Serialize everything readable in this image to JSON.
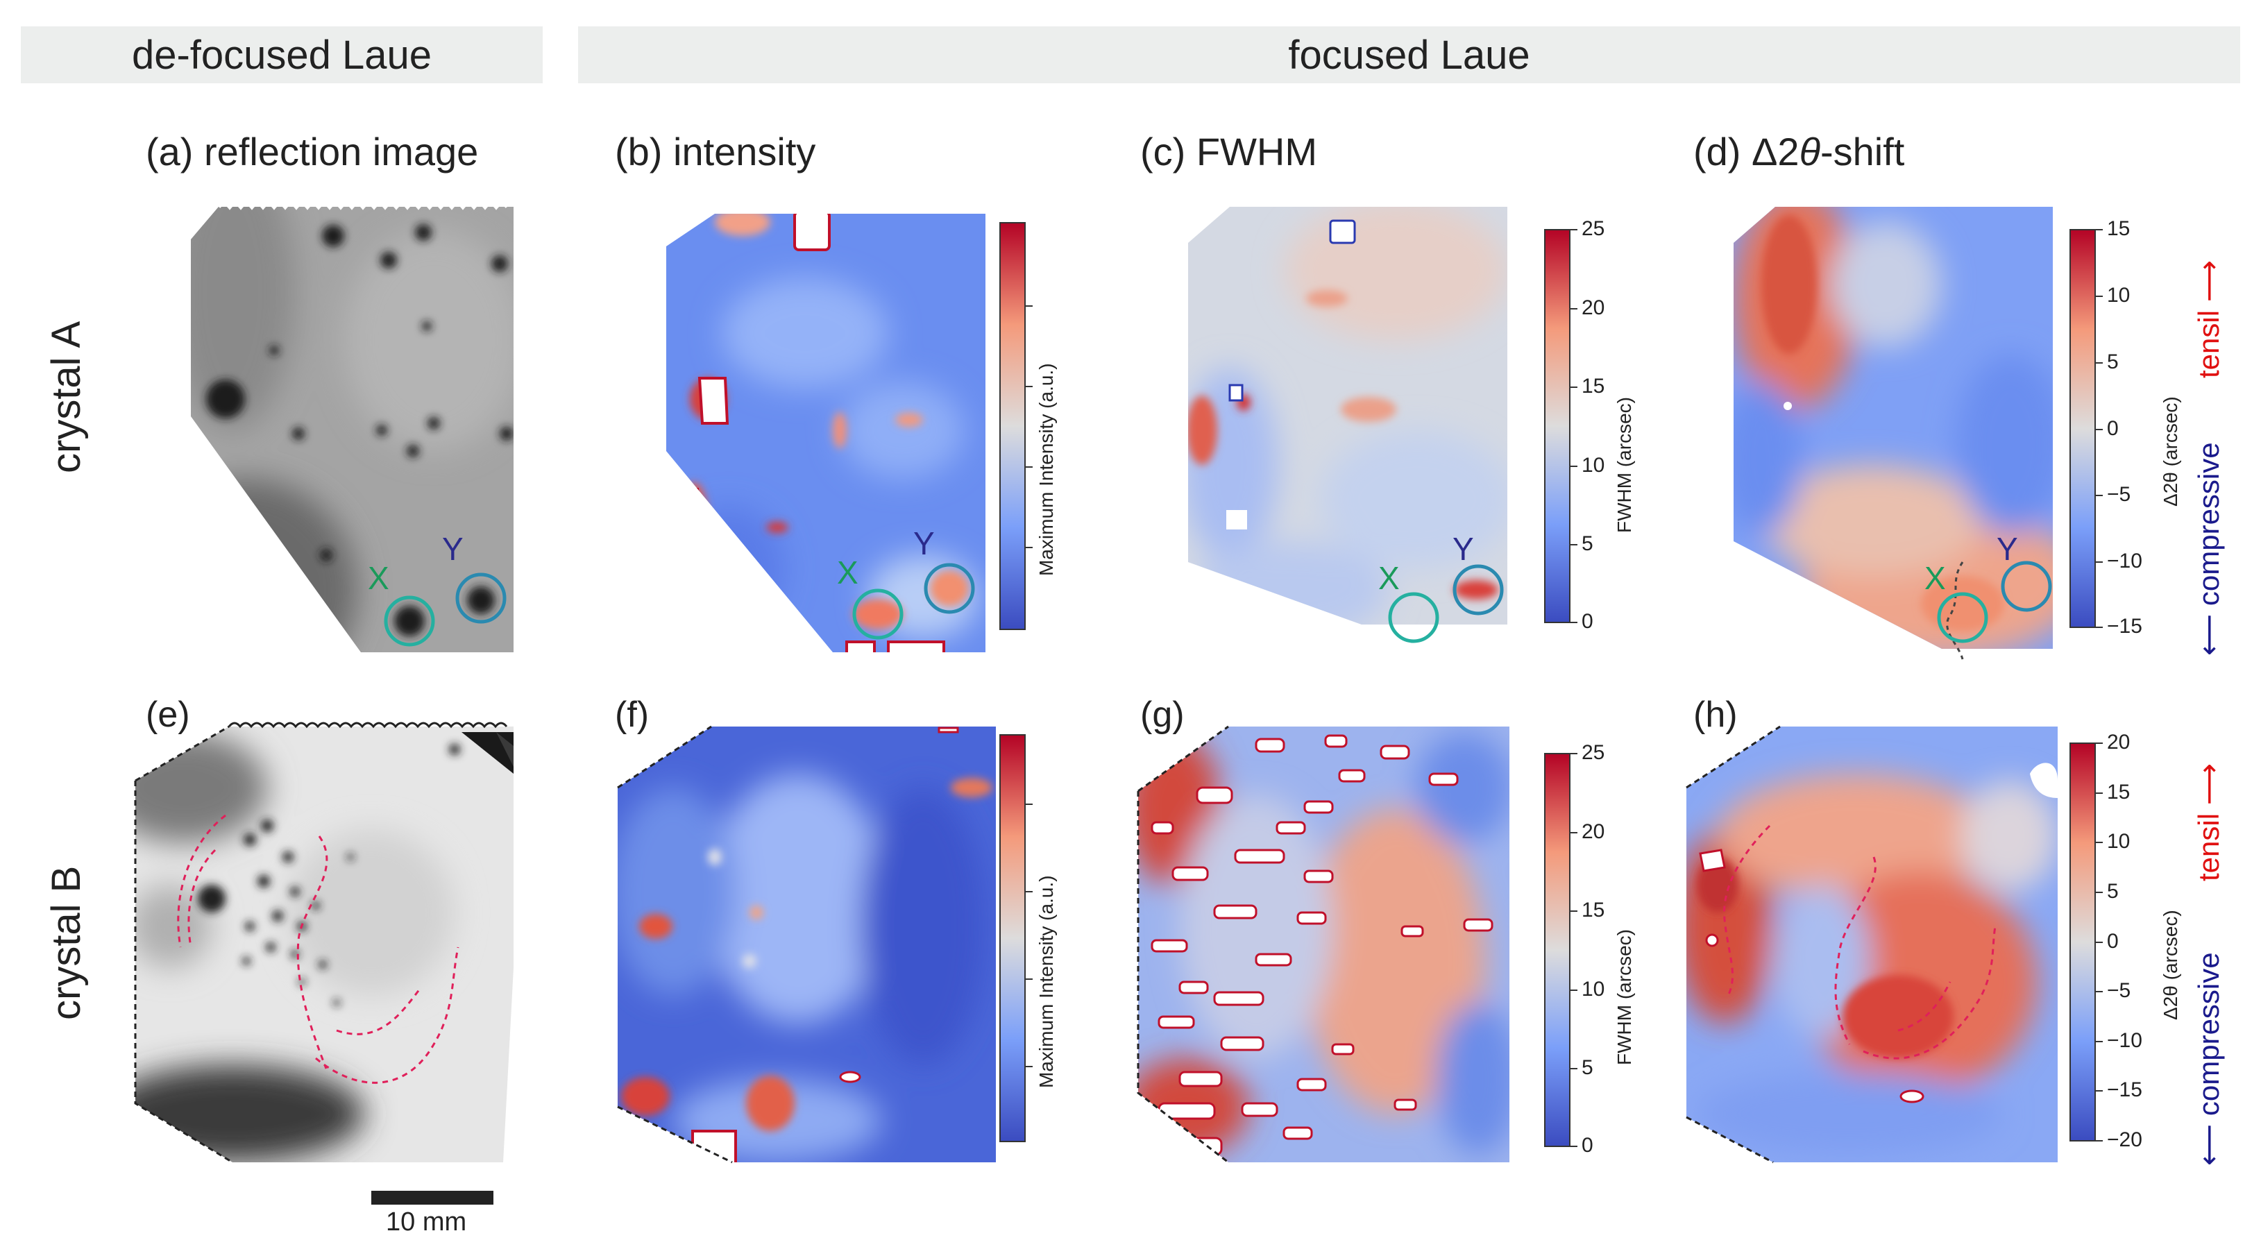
{
  "headers": {
    "defocused": "de-focused Laue",
    "focused": "focused Laue"
  },
  "panel_titles": {
    "a": "(a) reflection image",
    "b": "(b) intensity",
    "c": "(c) FWHM",
    "d_prefix": "(d) ",
    "d_delta": "Δ2",
    "d_theta": "θ",
    "d_suffix": "-shift"
  },
  "panel_labels": {
    "e": "(e)",
    "f": "(f)",
    "g": "(g)",
    "h": "(h)"
  },
  "row_labels": {
    "a": "crystal A",
    "b": "crystal B"
  },
  "markers": {
    "x": "X",
    "y": "Y"
  },
  "colorbars": {
    "intensity": {
      "label": "Maximum Intensity (a.u.)"
    },
    "fwhm": {
      "label": "FWHM (arcsec)",
      "ticks": [
        "25",
        "20",
        "15",
        "10",
        "5",
        "0"
      ]
    },
    "shift_a": {
      "label": "Δ2θ (arcsec)",
      "ticks": [
        "15",
        "10",
        "5",
        "0",
        "−5",
        "−10",
        "−15"
      ]
    },
    "shift_b": {
      "label": "Δ2θ (arcsec)",
      "ticks": [
        "20",
        "15",
        "10",
        "5",
        "0",
        "−5",
        "−10",
        "−15",
        "−20"
      ]
    }
  },
  "side_labels": {
    "tensile": "tensil ⟶",
    "compressive": "⟵ compressive"
  },
  "scale_bar": {
    "label": "10 mm"
  },
  "colors": {
    "marker_x": "#1a9a5a",
    "marker_y": "#2a2a8c",
    "circle_x": "#25b0a0",
    "circle_y": "#2a8ab0",
    "tensile": "#e01010",
    "compressive": "#1a1a8c",
    "dashed_curve": "#e0205a"
  }
}
